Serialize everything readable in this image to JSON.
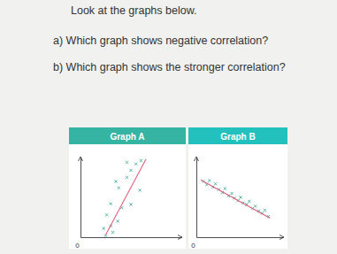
{
  "document": {
    "instruction": "Look at the graphs below.",
    "questions": [
      "a) Which graph shows negative correlation?",
      "b) Which graph shows the stronger correlation?"
    ]
  },
  "chart_data": [
    {
      "type": "scatter",
      "title": "Graph A",
      "xlim": [
        0,
        10
      ],
      "ylim": [
        0,
        10
      ],
      "xticks": [
        0
      ],
      "yticks": [],
      "tick_labels": "x",
      "series": [
        {
          "type": "scatter",
          "marker": "x",
          "color": "#3fae9c",
          "x": [
            2.5,
            3.2,
            2.3,
            3.0,
            3.7,
            2.6,
            4.1,
            3.0,
            5.0,
            5.9,
            3.8,
            3.5,
            4.6,
            5.0,
            5.5,
            4.6,
            6.0
          ],
          "values": [
            0.2,
            0.6,
            1.1,
            1.4,
            2.0,
            2.8,
            3.7,
            4.2,
            4.1,
            5.9,
            6.2,
            7.0,
            7.5,
            8.4,
            9.2,
            9.4,
            9.6
          ]
        },
        {
          "type": "line",
          "color": "#e2607c",
          "x": [
            2.5,
            6.5
          ],
          "values": [
            0.3,
            9.8
          ]
        }
      ]
    },
    {
      "type": "scatter",
      "title": "Graph B",
      "xlim": [
        0,
        10
      ],
      "ylim": [
        0,
        10
      ],
      "xticks": [
        0
      ],
      "yticks": [],
      "tick_labels": "x",
      "series": [
        {
          "type": "scatter",
          "marker": "x",
          "color": "#3fae9c",
          "x": [
            0.8,
            1.2,
            1.5,
            1.9,
            2.2,
            2.6,
            3.0,
            3.3,
            3.7,
            4.1,
            4.4,
            4.8,
            5.1,
            5.4,
            5.8,
            6.1,
            6.5,
            6.8,
            7.2,
            7.6,
            7.9,
            8.3
          ],
          "values": [
            7.0,
            6.6,
            7.1,
            6.3,
            6.7,
            6.0,
            5.6,
            6.1,
            5.2,
            5.5,
            4.9,
            4.6,
            5.0,
            4.3,
            4.1,
            4.5,
            3.6,
            3.9,
            3.3,
            3.0,
            3.4,
            2.6
          ]
        },
        {
          "type": "line",
          "color": "#e2607c",
          "x": [
            0.5,
            8.5
          ],
          "values": [
            7.2,
            2.4
          ]
        }
      ]
    }
  ]
}
